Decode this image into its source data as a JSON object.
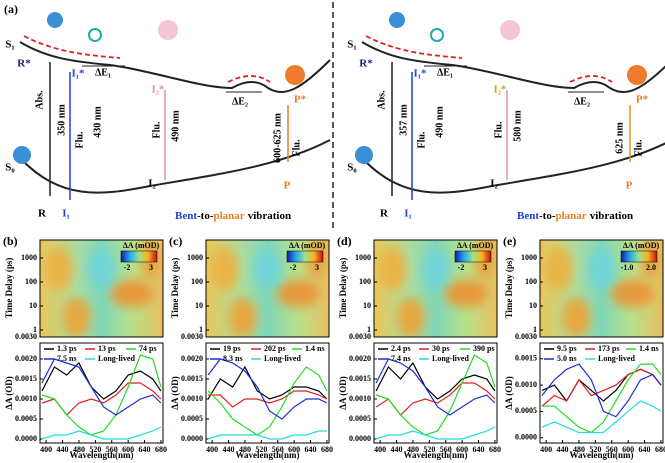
{
  "panel_a": {
    "label": "(a)",
    "left": {
      "s1": "S₁",
      "r_star": "R*",
      "i1_star": "I₁*",
      "de1": "ΔE₁",
      "i2_star": "I₂*",
      "de2": "ΔE₂",
      "p_star": "P*",
      "abs": "Abs.",
      "abs_nm": "350 nm",
      "flu1": "Flu.",
      "flu1_nm": "430 nm",
      "flu2": "Flu.",
      "flu2_nm": "490 nm",
      "flu3_nm": "600-625 nm",
      "flu3": "Flu.",
      "s0": "S₀",
      "i2": "I₂",
      "p": "P",
      "r": "R",
      "i1": "I₁",
      "footer": {
        "bent": "Bent",
        "to": "-to-",
        "planar": "planar",
        "rest": "vibration"
      }
    },
    "right": {
      "s1": "S₁",
      "r_star": "R*",
      "i1_star": "I₁*",
      "de1": "ΔE₁",
      "i2_star": "I₂*",
      "de2": "ΔE₂",
      "p_star": "P*",
      "abs": "Abs.",
      "abs_nm": "357 nm",
      "flu1": "Flu.",
      "flu1_nm": "490 nm",
      "flu2": "Flu.",
      "flu2_nm": "580 nm",
      "flu3_nm": "625 nm",
      "flu3": "Flu.",
      "s0": "S₀",
      "i2": "I₂",
      "p": "P",
      "r": "R",
      "i1": "I₁",
      "footer": {
        "bent": "Bent",
        "to": "-to-",
        "planar": "planar",
        "rest": "vibration"
      }
    }
  },
  "chart_data": [
    {
      "type": "line",
      "label": "(b)",
      "xlabel": "Wavelength(nm)",
      "ylabel": "ΔA (OD)",
      "x": [
        390,
        420,
        450,
        480,
        510,
        540,
        570,
        600,
        630,
        660,
        680
      ],
      "xlim": [
        385,
        685
      ],
      "xticks": [
        400,
        440,
        480,
        520,
        560,
        600,
        640,
        680
      ],
      "ylim": [
        -0.0001,
        0.0024
      ],
      "yticks": [
        {
          "value": 0,
          "label": "0.0000"
        },
        {
          "value": 0.0005,
          "label": "0.0005"
        },
        {
          "value": 0.001,
          "label": "0.0010"
        },
        {
          "value": 0.0015,
          "label": "0.0015"
        },
        {
          "value": 0.002,
          "label": "0.0020"
        }
      ],
      "series": [
        {
          "name": "1.3 ps",
          "color": "#000000",
          "values": [
            0.0012,
            0.0018,
            0.0016,
            0.0019,
            0.0013,
            0.001,
            0.0012,
            0.0016,
            0.0017,
            0.0015,
            0.0012
          ]
        },
        {
          "name": "13 ps",
          "color": "#e02020",
          "values": [
            0.0009,
            0.001,
            0.0006,
            0.0009,
            0.001,
            0.0009,
            0.0011,
            0.0014,
            0.0014,
            0.0012,
            0.001
          ]
        },
        {
          "name": "74 ps",
          "color": "#22dd22",
          "values": [
            0.0011,
            0.001,
            0.0006,
            0.0003,
            0.0001,
            0.0002,
            0.0006,
            0.0013,
            0.0021,
            0.002,
            0.0013
          ]
        },
        {
          "name": "7.5 ns",
          "color": "#1c2fd6",
          "values": [
            0.0014,
            0.002,
            0.0019,
            0.0018,
            0.0013,
            0.0008,
            0.0006,
            0.0008,
            0.001,
            0.0011,
            0.0009
          ]
        },
        {
          "name": "Long-lived",
          "color": "#22dddd",
          "values": [
            0,
            0.0001,
            0.0001,
            0.0002,
            0.0001,
            0,
            0,
            0,
            0.0001,
            0.0002,
            0.0003
          ]
        }
      ],
      "heatmap": {
        "ylabel": "Time Delay (ps)",
        "yticks": [
          {
            "value": 0.003,
            "label": "0.0030"
          },
          1,
          10,
          100,
          1000
        ],
        "colorbar_label": "ΔA (mOD)",
        "colorbar_ticks": [
          -2,
          3
        ]
      }
    },
    {
      "type": "line",
      "label": "(c)",
      "xlabel": "Wavelength(nm)",
      "ylabel": "ΔA (OD)",
      "x": [
        390,
        420,
        450,
        480,
        510,
        540,
        570,
        600,
        630,
        660,
        680
      ],
      "xlim": [
        385,
        685
      ],
      "xticks": [
        400,
        440,
        480,
        520,
        560,
        600,
        640,
        680
      ],
      "ylim": [
        -0.0001,
        0.0024
      ],
      "yticks": [
        {
          "value": 0,
          "label": "0.0000"
        },
        {
          "value": 0.0005,
          "label": "0.0005"
        },
        {
          "value": 0.001,
          "label": "0.0010"
        },
        {
          "value": 0.0015,
          "label": "0.0015"
        },
        {
          "value": 0.002,
          "label": "0.0020"
        }
      ],
      "series": [
        {
          "name": "19 ps",
          "color": "#000000",
          "values": [
            0.001,
            0.0015,
            0.0013,
            0.0018,
            0.0012,
            0.001,
            0.0011,
            0.0013,
            0.0013,
            0.0012,
            0.001
          ]
        },
        {
          "name": "202 ps",
          "color": "#e02020",
          "values": [
            0.0011,
            0.0011,
            0.0008,
            0.001,
            0.001,
            0.0009,
            0.001,
            0.0012,
            0.0012,
            0.0011,
            0.001
          ]
        },
        {
          "name": "1.4 ns",
          "color": "#22dd22",
          "values": [
            0.0012,
            0.0009,
            0.0005,
            0.0003,
            0.0001,
            0.0003,
            0.0008,
            0.0014,
            0.0018,
            0.0016,
            0.0012
          ]
        },
        {
          "name": "8.3 ns",
          "color": "#1c2fd6",
          "values": [
            0.0016,
            0.002,
            0.0019,
            0.0017,
            0.0013,
            0.0007,
            0.0005,
            0.0008,
            0.001,
            0.001,
            0.0009
          ]
        },
        {
          "name": "Long-lived",
          "color": "#22dddd",
          "values": [
            0,
            0.0001,
            0.0001,
            0.0001,
            0.0001,
            0,
            0,
            0.0001,
            0.0001,
            0.0002,
            0.0002
          ]
        }
      ],
      "heatmap": {
        "ylabel": "Time Delay (ps)",
        "yticks": [
          {
            "value": 0.003,
            "label": "0.0030"
          },
          1,
          10,
          100,
          1000
        ],
        "colorbar_label": "ΔA (mOD)",
        "colorbar_ticks": [
          -2,
          3
        ]
      }
    },
    {
      "type": "line",
      "label": "(d)",
      "xlabel": "Wavelength(nm)",
      "ylabel": "ΔA (OD)",
      "x": [
        390,
        420,
        450,
        480,
        510,
        540,
        570,
        600,
        630,
        660,
        680
      ],
      "xlim": [
        385,
        685
      ],
      "xticks": [
        400,
        440,
        480,
        520,
        560,
        600,
        640,
        680
      ],
      "ylim": [
        -0.0001,
        0.0024
      ],
      "yticks": [
        {
          "value": 0,
          "label": "0.0000"
        },
        {
          "value": 0.0005,
          "label": "0.0005"
        },
        {
          "value": 0.001,
          "label": "0.0010"
        },
        {
          "value": 0.0015,
          "label": "0.0015"
        },
        {
          "value": 0.002,
          "label": "0.0020"
        }
      ],
      "series": [
        {
          "name": "2.4 ps",
          "color": "#000000",
          "values": [
            0.0012,
            0.0018,
            0.0015,
            0.0019,
            0.0013,
            0.001,
            0.0012,
            0.0015,
            0.0016,
            0.0015,
            0.0012
          ]
        },
        {
          "name": "30 ps",
          "color": "#e02020",
          "values": [
            0.0008,
            0.001,
            0.0006,
            0.0009,
            0.001,
            0.0009,
            0.0011,
            0.0014,
            0.0014,
            0.0012,
            0.001
          ]
        },
        {
          "name": "390 ps",
          "color": "#22dd22",
          "values": [
            0.0011,
            0.001,
            0.0006,
            0.0003,
            0.0001,
            0.0002,
            0.0007,
            0.0014,
            0.0021,
            0.0019,
            0.0013
          ]
        },
        {
          "name": "7.4 ns",
          "color": "#1c2fd6",
          "values": [
            0.0014,
            0.002,
            0.0019,
            0.0017,
            0.0013,
            0.0008,
            0.0006,
            0.0008,
            0.001,
            0.0011,
            0.0009
          ]
        },
        {
          "name": "Long-lived",
          "color": "#22dddd",
          "values": [
            0,
            0.0001,
            0.0001,
            0.0002,
            0.0001,
            0,
            0,
            0,
            0.0001,
            0.0002,
            0.0003
          ]
        }
      ],
      "heatmap": {
        "ylabel": "Time Delay (ps)",
        "yticks": [
          {
            "value": 0.003,
            "label": "0.0030"
          },
          1,
          10,
          100,
          1000
        ],
        "colorbar_label": "ΔA (mOD)",
        "colorbar_ticks": [
          -2,
          3
        ]
      }
    },
    {
      "type": "line",
      "label": "(e)",
      "xlabel": "Wavelength(nm)",
      "ylabel": "ΔA (OD)",
      "x": [
        390,
        420,
        450,
        480,
        510,
        540,
        570,
        600,
        630,
        660,
        680
      ],
      "xlim": [
        385,
        685
      ],
      "xticks": [
        400,
        440,
        480,
        520,
        560,
        600,
        640,
        680
      ],
      "ylim": [
        -0.0001,
        0.0018
      ],
      "yticks": [
        {
          "value": 0,
          "label": "0.0000"
        },
        {
          "value": 0.0005,
          "label": "0.0005"
        },
        {
          "value": 0.001,
          "label": "0.0010"
        },
        {
          "value": 0.0015,
          "label": "0.0015"
        }
      ],
      "series": [
        {
          "name": "9.5 ps",
          "color": "#000000",
          "values": [
            0.0009,
            0.001,
            0.0007,
            0.0011,
            0.0009,
            0.0007,
            0.0009,
            0.0012,
            0.0013,
            0.0012,
            0.001
          ]
        },
        {
          "name": "173 ps",
          "color": "#e02020",
          "values": [
            0.0006,
            0.0008,
            0.0007,
            0.0011,
            0.0008,
            0.0009,
            0.001,
            0.0012,
            0.0013,
            0.0012,
            0.001
          ]
        },
        {
          "name": "1.4 ns",
          "color": "#22dd22",
          "values": [
            0.0006,
            0.0006,
            0.0004,
            0.0002,
            0.0001,
            0.0003,
            0.0007,
            0.0011,
            0.0014,
            0.0014,
            0.0012
          ]
        },
        {
          "name": "5.0 ns",
          "color": "#1c2fd6",
          "values": [
            0.0008,
            0.0011,
            0.0013,
            0.0014,
            0.0011,
            0.0005,
            0.0004,
            0.0007,
            0.0011,
            0.0012,
            0.001
          ]
        },
        {
          "name": "Long-lived",
          "color": "#22dddd",
          "values": [
            0.0002,
            0.0003,
            0.0002,
            0.0001,
            0.0001,
            0.0001,
            0.0003,
            0.0005,
            0.0007,
            0.0006,
            0.0005
          ]
        }
      ],
      "heatmap": {
        "ylabel": "Time Delay (ps)",
        "yticks": [
          {
            "value": 0.003,
            "label": "0.0030"
          },
          1,
          10,
          100,
          1000
        ],
        "colorbar_label": "ΔA (mOD)",
        "colorbar_ticks": [
          {
            "value": -1,
            "label": "-1.0"
          },
          {
            "value": 2,
            "label": "2.0"
          }
        ]
      }
    }
  ]
}
